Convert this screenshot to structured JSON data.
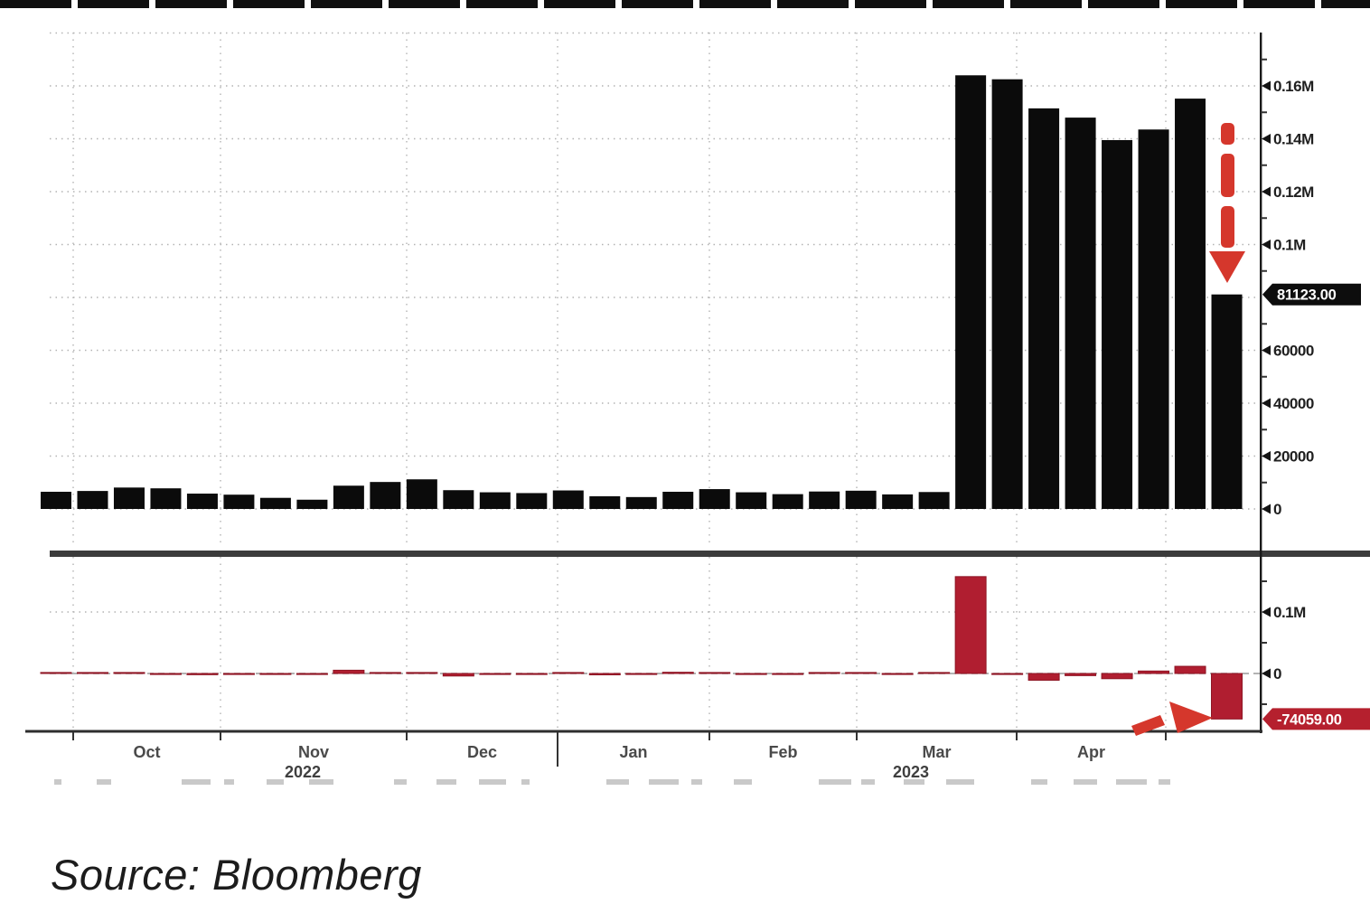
{
  "source_label": "Source: Bloomberg",
  "chart_data": {
    "type": "bar",
    "title": "",
    "frequency": "weekly",
    "x_axis": {
      "months": [
        "Oct",
        "Nov",
        "Dec",
        "Jan",
        "Feb",
        "Mar",
        "Apr"
      ],
      "year_labels": [
        "2022",
        "2023"
      ]
    },
    "panels": [
      {
        "id": "level",
        "position": "top",
        "ylim": [
          0,
          190000
        ],
        "grid_step": 20000,
        "y_ticks": [
          {
            "value": 160000,
            "label": "0.16M"
          },
          {
            "value": 140000,
            "label": "0.14M"
          },
          {
            "value": 120000,
            "label": "0.12M"
          },
          {
            "value": 100000,
            "label": "0.1M"
          },
          {
            "value": 60000,
            "label": "60000"
          },
          {
            "value": 40000,
            "label": "40000"
          },
          {
            "value": 20000,
            "label": "20000"
          },
          {
            "value": 0,
            "label": "0"
          }
        ],
        "last_value": {
          "value": 81123,
          "label": "81123.00"
        },
        "values": [
          6500,
          6800,
          8100,
          7800,
          5800,
          5400,
          4200,
          3500,
          8800,
          10200,
          11200,
          7100,
          6300,
          6000,
          7000,
          4800,
          4500,
          6500,
          7500,
          6300,
          5600,
          6600,
          6900,
          5500,
          6400,
          164000,
          162500,
          151500,
          148000,
          139500,
          143500,
          155182,
          81123
        ]
      },
      {
        "id": "weekly-change",
        "position": "bottom",
        "ylim": [
          -92000,
          189000
        ],
        "y_ticks": [
          {
            "value": 100000,
            "label": "0.1M"
          },
          {
            "value": 0,
            "label": "0"
          }
        ],
        "last_value": {
          "value": -74059,
          "label": "-74059.00"
        },
        "values": [
          600,
          300,
          1300,
          -300,
          -2000,
          -400,
          -1200,
          -700,
          5300,
          1400,
          1000,
          -4100,
          -800,
          -300,
          1000,
          -2200,
          -300,
          2000,
          1000,
          -1200,
          -700,
          1000,
          300,
          -1400,
          900,
          157600,
          -1500,
          -11000,
          -3500,
          -8500,
          4000,
          11682,
          -74059
        ]
      }
    ],
    "annotations": [
      {
        "type": "arrow-down",
        "panel": "level",
        "meaning": "drop to last value"
      },
      {
        "type": "arrow-right",
        "panel": "weekly-change",
        "meaning": "points at last change"
      }
    ],
    "colors": {
      "bar": "#0b0b0b",
      "change_bar": "#b01e30",
      "change_bar_edge": "#8e1524",
      "annotation_red": "#d5372c",
      "tag_dark": "#0d0d0d",
      "tag_red": "#b5202e",
      "grid": "#b3b3b3",
      "axis": "#1a1a1a"
    }
  }
}
